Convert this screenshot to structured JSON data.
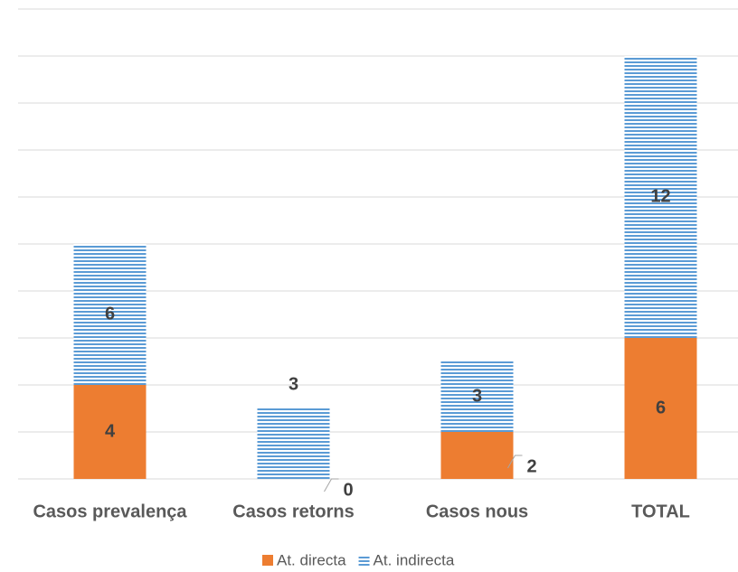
{
  "chart_data": {
    "type": "stacked_bar",
    "categories": [
      "Casos prevalença",
      "Casos retorns",
      "Casos nous",
      "TOTAL"
    ],
    "series": [
      {
        "name": "At. directa",
        "color": "#ed7d31",
        "values": [
          4,
          0,
          2,
          6
        ]
      },
      {
        "name": "At. indirecta",
        "color": "#5b9bd5",
        "values": [
          6,
          3,
          3,
          12
        ]
      }
    ],
    "ylim": [
      0,
      20
    ],
    "yticks": [
      0,
      2,
      4,
      6,
      8,
      10,
      12,
      14,
      16,
      18,
      20
    ],
    "grid": true
  }
}
